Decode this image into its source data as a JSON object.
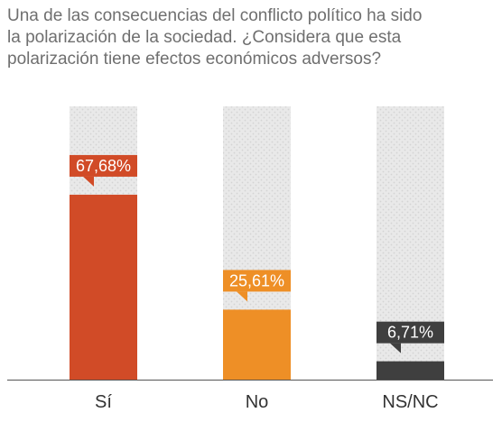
{
  "title_lines": [
    "Una de las consecuencias del conflicto político ha sido",
    "la polarización de la sociedad. ¿Considera que esta",
    "polarización tiene efectos económicos adversos?"
  ],
  "chart_data": {
    "type": "bar",
    "title": "Una de las consecuencias del conflicto político ha sido la polarización de la sociedad. ¿Considera que esta polarización tiene efectos económicos adversos?",
    "categories": [
      "Sí",
      "No",
      "NS/NC"
    ],
    "values": [
      67.68,
      25.61,
      6.71
    ],
    "value_labels": [
      "67,68%",
      "25,61%",
      "6,71%"
    ],
    "colors": [
      "#d14b27",
      "#ee8f26",
      "#3f3f3f"
    ],
    "background_bar_color": "#e6e6e6",
    "ylim": [
      0,
      100
    ],
    "grid": false,
    "legend": "none",
    "xlabel": "",
    "ylabel": ""
  }
}
